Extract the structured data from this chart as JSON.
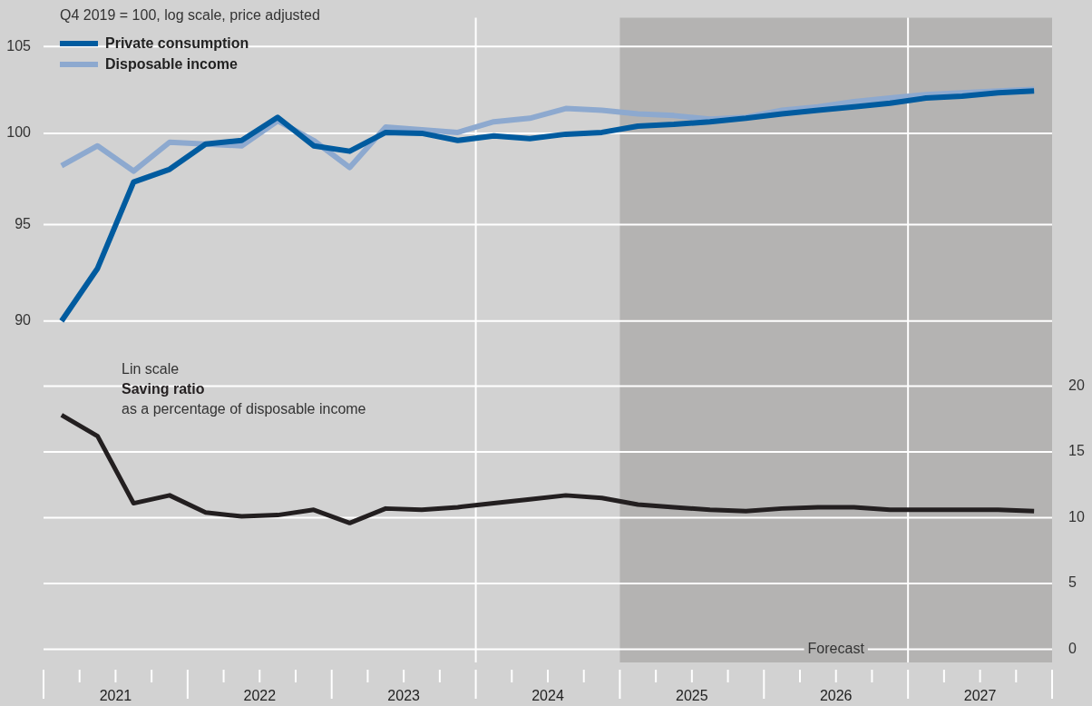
{
  "chart_data": {
    "type": "line",
    "subtitle": "Q4 2019 = 100, log scale, price adjusted",
    "x": [
      2021.125,
      2021.375,
      2021.625,
      2021.875,
      2022.125,
      2022.375,
      2022.625,
      2022.875,
      2023.125,
      2023.375,
      2023.625,
      2023.875,
      2024.125,
      2024.375,
      2024.625,
      2024.875,
      2025.125,
      2025.375,
      2025.625,
      2025.875,
      2026.125,
      2026.375,
      2026.625,
      2026.875,
      2027.125,
      2027.375,
      2027.625,
      2027.875
    ],
    "series": [
      {
        "name": "Private consumption",
        "color": "#005b9f",
        "axis": "y",
        "values": [
          90.0,
          92.7,
          97.3,
          98.0,
          99.4,
          99.6,
          100.9,
          99.3,
          99.0,
          100.05,
          100.0,
          99.6,
          99.85,
          99.7,
          99.95,
          100.05,
          100.4,
          100.5,
          100.65,
          100.85,
          101.1,
          101.3,
          101.5,
          101.7,
          102.0,
          102.1,
          102.3,
          102.4
        ]
      },
      {
        "name": "Disposable income",
        "color": "#8da9cf",
        "axis": "y",
        "values": [
          98.2,
          99.3,
          97.9,
          99.5,
          99.4,
          99.3,
          100.7,
          99.6,
          98.1,
          100.35,
          100.2,
          100.05,
          100.65,
          100.85,
          101.4,
          101.3,
          101.1,
          101.0,
          100.8,
          100.9,
          101.3,
          101.5,
          101.8,
          102.0,
          102.2,
          102.3,
          102.4,
          102.5
        ]
      },
      {
        "name": "Saving ratio",
        "color": "#231f20",
        "axis": "y2",
        "values": [
          17.8,
          16.2,
          11.1,
          11.7,
          10.4,
          10.1,
          10.2,
          10.6,
          9.6,
          10.7,
          10.6,
          10.8,
          11.1,
          11.4,
          11.7,
          11.5,
          11.0,
          10.8,
          10.6,
          10.5,
          10.7,
          10.8,
          10.8,
          10.6,
          10.6,
          10.6,
          10.6,
          10.5
        ]
      }
    ],
    "xlim": [
      2021,
      2028
    ],
    "xticks": [
      {
        "value": 2021.5,
        "label": "2021"
      },
      {
        "value": 2022.5,
        "label": "2022"
      },
      {
        "value": 2023.5,
        "label": "2023"
      },
      {
        "value": 2024.5,
        "label": "2024"
      },
      {
        "value": 2025.5,
        "label": "2025"
      },
      {
        "value": 2026.5,
        "label": "2026"
      },
      {
        "value": 2027.5,
        "label": "2027"
      }
    ],
    "ylim": [
      74.3,
      106.7
    ],
    "yticks": [
      90,
      95,
      100,
      105
    ],
    "log": "y",
    "y2lim": [
      -1.0,
      48.0
    ],
    "y2ticks": [
      0,
      5,
      10,
      15,
      20
    ],
    "grid": "y",
    "legend": "top left",
    "marker": "none",
    "line_style": "solid",
    "annotations": [
      "Lin scale",
      "as a percentage of disposable income"
    ],
    "ref_lines": [
      {
        "axis": "x",
        "value": 2024,
        "color": "#ffffff"
      },
      {
        "axis": "x",
        "value": 2027,
        "color": "#ffffff"
      }
    ],
    "bands": [
      {
        "axis": "x",
        "from": 2025,
        "to": 2028,
        "label": "Forecast",
        "color": "#b4b3b2"
      }
    ]
  }
}
